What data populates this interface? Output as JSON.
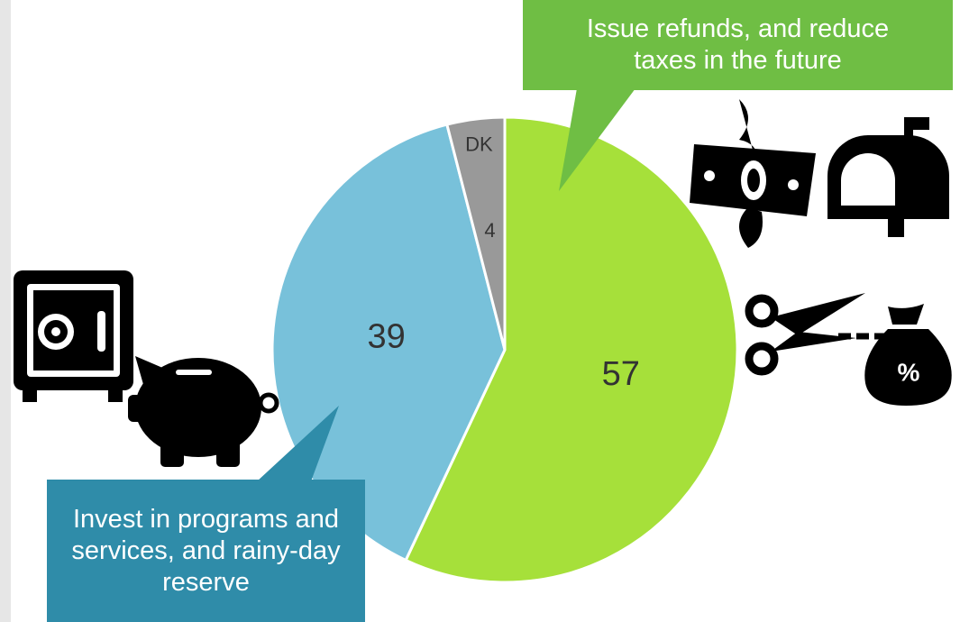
{
  "chart_data": {
    "type": "pie",
    "categories": [
      "Issue refunds, and reduce taxes in the future",
      "Invest in programs and services, and rainy-day reserve",
      "DK"
    ],
    "values": [
      57,
      39,
      4
    ],
    "colors": [
      "#a6e03a",
      "#78c1da",
      "#999999"
    ],
    "callout_colors": [
      "#6fbe44",
      "#2f8ca9"
    ]
  }
}
